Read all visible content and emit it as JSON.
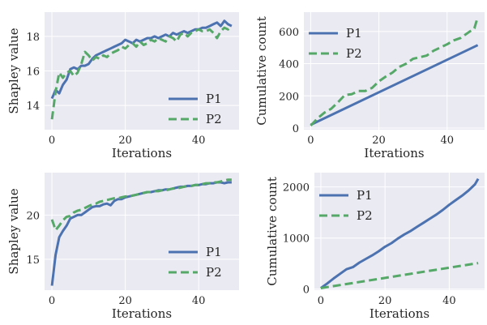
{
  "colors": {
    "P1": "#4c72b0",
    "P2": "#55a868",
    "background": "#eaeaf2",
    "grid": "#ffffff"
  },
  "chart_data": [
    {
      "type": "line",
      "xlabel": "Iterations",
      "ylabel": "Shapley value",
      "xlim": [
        -2,
        51
      ],
      "ylim": [
        12.6,
        19.4
      ],
      "xticks": [
        0,
        20,
        40
      ],
      "yticks": [
        14,
        16,
        18
      ],
      "legend": "bottom-right",
      "grid": true,
      "series": [
        {
          "name": "P1",
          "style": "solid",
          "color": "#4c72b0",
          "x": [
            0,
            1,
            2,
            3,
            4,
            5,
            6,
            7,
            8,
            9,
            10,
            11,
            12,
            13,
            14,
            15,
            16,
            17,
            18,
            19,
            20,
            21,
            22,
            23,
            24,
            25,
            26,
            27,
            28,
            29,
            30,
            31,
            32,
            33,
            34,
            35,
            36,
            37,
            38,
            39,
            40,
            41,
            42,
            43,
            44,
            45,
            46,
            47,
            48,
            49
          ],
          "y": [
            14.4,
            14.9,
            14.7,
            15.2,
            15.5,
            16.1,
            16.2,
            16.1,
            16.3,
            16.3,
            16.4,
            16.7,
            16.9,
            17.0,
            17.1,
            17.2,
            17.3,
            17.4,
            17.5,
            17.6,
            17.8,
            17.7,
            17.6,
            17.8,
            17.7,
            17.8,
            17.9,
            17.9,
            18.0,
            17.9,
            18.0,
            18.1,
            18.0,
            18.2,
            18.1,
            18.2,
            18.3,
            18.2,
            18.3,
            18.4,
            18.4,
            18.5,
            18.5,
            18.6,
            18.7,
            18.8,
            18.6,
            18.9,
            18.7,
            18.6
          ]
        },
        {
          "name": "P2",
          "style": "dashed",
          "color": "#55a868",
          "x": [
            0,
            1,
            2,
            3,
            4,
            5,
            6,
            7,
            8,
            9,
            10,
            11,
            12,
            13,
            14,
            15,
            16,
            17,
            18,
            19,
            20,
            21,
            22,
            23,
            24,
            25,
            26,
            27,
            28,
            29,
            30,
            31,
            32,
            33,
            34,
            35,
            36,
            37,
            38,
            39,
            40,
            41,
            42,
            43,
            44,
            45,
            46,
            47,
            48,
            49
          ],
          "y": [
            13.2,
            14.8,
            15.9,
            15.6,
            15.9,
            16.0,
            15.7,
            15.9,
            16.4,
            17.1,
            16.9,
            16.6,
            16.8,
            16.7,
            16.9,
            16.8,
            17.0,
            17.1,
            17.2,
            17.4,
            17.3,
            17.5,
            17.6,
            17.4,
            17.7,
            17.5,
            17.6,
            17.8,
            17.7,
            17.9,
            17.8,
            17.7,
            18.0,
            17.9,
            17.7,
            18.1,
            18.2,
            18.0,
            18.2,
            18.3,
            18.4,
            18.3,
            18.3,
            18.4,
            18.2,
            17.9,
            18.3,
            18.5,
            18.4,
            18.6
          ]
        }
      ]
    },
    {
      "type": "line",
      "xlabel": "Iterations",
      "ylabel": "Cumulative count",
      "xlim": [
        -2,
        51
      ],
      "ylim": [
        -10,
        720
      ],
      "xticks": [
        0,
        20,
        40
      ],
      "yticks": [
        0,
        200,
        400,
        600
      ],
      "legend": "top-left",
      "grid": true,
      "series": [
        {
          "name": "P1",
          "style": "solid",
          "color": "#4c72b0",
          "x": [
            0,
            49
          ],
          "y": [
            20,
            515
          ]
        },
        {
          "name": "P2",
          "style": "dashed",
          "color": "#55a868",
          "x": [
            0,
            2,
            4,
            6,
            8,
            10,
            12,
            14,
            16,
            18,
            20,
            22,
            24,
            26,
            28,
            30,
            32,
            34,
            36,
            38,
            40,
            42,
            44,
            46,
            48,
            49
          ],
          "y": [
            15,
            60,
            95,
            120,
            160,
            205,
            210,
            230,
            230,
            250,
            290,
            320,
            345,
            380,
            400,
            430,
            440,
            450,
            480,
            500,
            520,
            545,
            560,
            590,
            620,
            690
          ]
        }
      ]
    },
    {
      "type": "line",
      "xlabel": "Iterations",
      "ylabel": "Shapley value",
      "xlim": [
        -2,
        51
      ],
      "ylim": [
        11.5,
        24.8
      ],
      "xticks": [
        0,
        20,
        40
      ],
      "yticks": [
        15,
        20
      ],
      "legend": "bottom-right",
      "grid": true,
      "series": [
        {
          "name": "P1",
          "style": "solid",
          "color": "#4c72b0",
          "x": [
            0,
            1,
            2,
            3,
            4,
            5,
            6,
            7,
            8,
            9,
            10,
            11,
            12,
            13,
            14,
            15,
            16,
            17,
            18,
            19,
            20,
            21,
            22,
            23,
            24,
            25,
            26,
            27,
            28,
            29,
            30,
            31,
            32,
            33,
            34,
            35,
            36,
            37,
            38,
            39,
            40,
            41,
            42,
            43,
            44,
            45,
            46,
            47,
            48,
            49
          ],
          "y": [
            12.0,
            15.5,
            17.5,
            18.2,
            18.8,
            19.6,
            19.8,
            20.0,
            20.0,
            20.3,
            20.6,
            20.9,
            21.0,
            21.0,
            21.2,
            21.3,
            21.1,
            21.6,
            21.8,
            21.8,
            22.0,
            22.1,
            22.2,
            22.3,
            22.4,
            22.5,
            22.6,
            22.6,
            22.7,
            22.8,
            22.8,
            22.9,
            22.9,
            23.0,
            23.1,
            23.2,
            23.2,
            23.3,
            23.3,
            23.4,
            23.4,
            23.5,
            23.5,
            23.6,
            23.6,
            23.7,
            23.7,
            23.6,
            23.7,
            23.7
          ]
        },
        {
          "name": "P2",
          "style": "dashed",
          "color": "#55a868",
          "x": [
            0,
            1,
            2,
            3,
            4,
            5,
            6,
            7,
            8,
            9,
            10,
            11,
            12,
            13,
            14,
            15,
            16,
            17,
            18,
            19,
            20,
            21,
            22,
            23,
            24,
            25,
            26,
            27,
            28,
            29,
            30,
            31,
            32,
            33,
            34,
            35,
            36,
            37,
            38,
            39,
            40,
            41,
            42,
            43,
            44,
            45,
            46,
            47,
            48,
            49
          ],
          "y": [
            19.5,
            18.3,
            18.8,
            19.4,
            19.8,
            19.9,
            20.3,
            20.5,
            20.6,
            20.8,
            21.0,
            21.2,
            21.3,
            21.5,
            21.6,
            21.7,
            21.8,
            21.9,
            21.9,
            22.0,
            22.1,
            22.1,
            22.2,
            22.3,
            22.4,
            22.5,
            22.6,
            22.6,
            22.7,
            22.7,
            22.8,
            22.8,
            22.9,
            23.0,
            23.0,
            23.1,
            23.2,
            23.3,
            23.3,
            23.4,
            23.4,
            23.5,
            23.6,
            23.6,
            23.7,
            23.7,
            23.8,
            23.9,
            24.0,
            24.0
          ]
        }
      ]
    },
    {
      "type": "line",
      "xlabel": "Iterations",
      "ylabel": "Cumulative count",
      "xlim": [
        -2,
        51
      ],
      "ylim": [
        -20,
        2280
      ],
      "xticks": [
        0,
        20,
        40
      ],
      "yticks": [
        0,
        1000,
        2000
      ],
      "legend": "top-left",
      "grid": true,
      "series": [
        {
          "name": "P1",
          "style": "solid",
          "color": "#4c72b0",
          "x": [
            0,
            2,
            4,
            6,
            8,
            10,
            12,
            14,
            16,
            18,
            20,
            22,
            24,
            26,
            28,
            30,
            32,
            34,
            36,
            38,
            40,
            42,
            44,
            46,
            48,
            49
          ],
          "y": [
            20,
            110,
            210,
            300,
            390,
            430,
            520,
            590,
            660,
            740,
            830,
            900,
            990,
            1070,
            1140,
            1220,
            1300,
            1380,
            1460,
            1550,
            1650,
            1740,
            1830,
            1930,
            2050,
            2160
          ]
        },
        {
          "name": "P2",
          "style": "dashed",
          "color": "#55a868",
          "x": [
            0,
            49
          ],
          "y": [
            20,
            510
          ]
        }
      ]
    }
  ]
}
